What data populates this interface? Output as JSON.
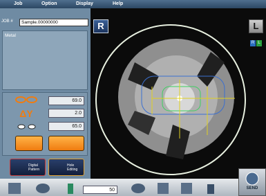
{
  "menu": [
    "Job",
    "Option",
    "Display",
    "Help"
  ],
  "job": {
    "label": "JOB #",
    "value": "Sample.00000000"
  },
  "side_buttons": {
    "right": "R",
    "left": "L",
    "small_right": "R",
    "small_left": "L"
  },
  "panel": {
    "title": "Metal"
  },
  "fields": [
    "69.0",
    "2.0",
    "65.0"
  ],
  "mode_buttons": [
    "Digital Pattern",
    "Hole Editing"
  ],
  "toolbar": {
    "value": "50",
    "send": "SEND"
  }
}
